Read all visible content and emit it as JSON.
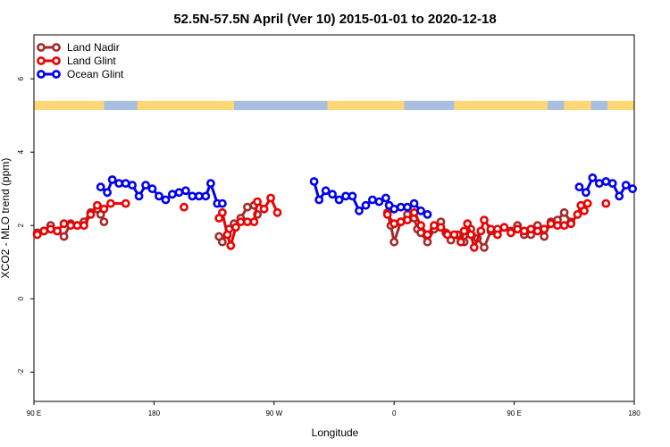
{
  "chart_data": {
    "type": "line",
    "title": "52.5N-57.5N April (Ver 10)   2015-01-01 to 2020-12-18",
    "xlabel": "Longitude",
    "ylabel": "XCO2 - MLO trend (ppm)",
    "ylim": [
      -2.8,
      7.2
    ],
    "xlim": [
      0,
      360
    ],
    "x_ticks": [
      {
        "value": 0,
        "label": "90 E"
      },
      {
        "value": 72,
        "label": "180"
      },
      {
        "value": 144,
        "label": "90 W"
      },
      {
        "value": 216,
        "label": "0"
      },
      {
        "value": 288,
        "label": "90 E"
      },
      {
        "value": 360,
        "label": "180"
      }
    ],
    "y_ticks": [
      {
        "value": -2,
        "label": "-2"
      },
      {
        "value": 0,
        "label": "0"
      },
      {
        "value": 2,
        "label": "2"
      },
      {
        "value": 4,
        "label": "4"
      },
      {
        "value": 6,
        "label": "6"
      }
    ],
    "grid": false,
    "legend_position": "top-left",
    "land_strip": {
      "y_from": 5.15,
      "y_to": 5.4,
      "land_color": "#ffd775",
      "ocean_color": "#a9bfe0"
    },
    "series": [
      {
        "name": "Land Nadir",
        "color": "#a52a2a",
        "segments": [
          [
            [
              2,
              1.8
            ],
            [
              6,
              1.85
            ],
            [
              10,
              2.0
            ],
            [
              14,
              1.85
            ],
            [
              18,
              1.7
            ],
            [
              22,
              2.05
            ],
            [
              26,
              2.0
            ],
            [
              30,
              2.1
            ],
            [
              34,
              2.35
            ],
            [
              38,
              2.45
            ],
            [
              40,
              2.3
            ],
            [
              42,
              2.1
            ]
          ],
          [
            [
              111,
              1.7
            ],
            [
              113,
              1.55
            ],
            [
              117,
              1.9
            ],
            [
              120,
              2.05
            ],
            [
              124,
              2.2
            ],
            [
              128,
              2.5
            ],
            [
              132,
              2.55
            ],
            [
              134,
              2.3
            ]
          ],
          [
            [
              212,
              2.35
            ],
            [
              214,
              2.0
            ],
            [
              216,
              1.55
            ],
            [
              220,
              2.1
            ],
            [
              224,
              2.3
            ],
            [
              228,
              2.2
            ],
            [
              230,
              1.9
            ],
            [
              232,
              1.8
            ],
            [
              236,
              1.55
            ],
            [
              240,
              1.9
            ],
            [
              244,
              2.1
            ],
            [
              247,
              1.8
            ],
            [
              250,
              1.6
            ],
            [
              254,
              1.75
            ],
            [
              258,
              1.55
            ],
            [
              262,
              1.9
            ],
            [
              266,
              1.65
            ],
            [
              270,
              1.4
            ],
            [
              274,
              1.85
            ],
            [
              278,
              1.9
            ],
            [
              282,
              1.95
            ],
            [
              286,
              1.85
            ],
            [
              290,
              2.0
            ],
            [
              294,
              1.75
            ],
            [
              298,
              1.75
            ],
            [
              302,
              2.0
            ],
            [
              306,
              1.7
            ],
            [
              310,
              2.1
            ],
            [
              314,
              2.15
            ],
            [
              318,
              2.35
            ],
            [
              322,
              2.1
            ]
          ]
        ]
      },
      {
        "name": "Land Glint",
        "color": "#ee0000",
        "segments": [
          [
            [
              2,
              1.75
            ],
            [
              6,
              1.85
            ],
            [
              10,
              1.9
            ],
            [
              14,
              1.85
            ],
            [
              18,
              2.05
            ],
            [
              22,
              2.0
            ],
            [
              26,
              2.0
            ],
            [
              30,
              2.0
            ],
            [
              34,
              2.3
            ],
            [
              38,
              2.55
            ],
            [
              42,
              2.45
            ],
            [
              46,
              2.6
            ],
            [
              55,
              2.6
            ]
          ],
          [
            [
              90,
              2.5
            ]
          ],
          [
            [
              111,
              2.2
            ],
            [
              113,
              2.35
            ],
            [
              116,
              1.75
            ],
            [
              118,
              1.45
            ],
            [
              121,
              1.95
            ],
            [
              124,
              2.1
            ],
            [
              128,
              2.1
            ],
            [
              132,
              2.1
            ],
            [
              134,
              2.65
            ],
            [
              138,
              2.45
            ],
            [
              142,
              2.75
            ],
            [
              146,
              2.35
            ]
          ],
          [
            [
              212,
              2.3
            ],
            [
              216,
              2.05
            ],
            [
              220,
              2.1
            ],
            [
              224,
              2.15
            ],
            [
              228,
              2.35
            ],
            [
              232,
              2.0
            ],
            [
              236,
              1.75
            ],
            [
              240,
              2.0
            ],
            [
              244,
              1.95
            ],
            [
              248,
              1.75
            ],
            [
              252,
              1.75
            ],
            [
              256,
              1.55
            ],
            [
              258,
              1.85
            ],
            [
              260,
              2.05
            ],
            [
              262,
              1.75
            ],
            [
              264,
              1.4
            ],
            [
              268,
              1.85
            ],
            [
              270,
              2.15
            ],
            [
              274,
              1.9
            ],
            [
              278,
              1.75
            ],
            [
              282,
              1.95
            ],
            [
              286,
              1.8
            ],
            [
              290,
              1.9
            ],
            [
              294,
              1.85
            ],
            [
              298,
              1.9
            ],
            [
              302,
              1.85
            ],
            [
              306,
              1.9
            ],
            [
              310,
              2.05
            ],
            [
              314,
              2.0
            ],
            [
              318,
              2.0
            ],
            [
              322,
              2.05
            ],
            [
              326,
              2.3
            ],
            [
              328,
              2.55
            ],
            [
              330,
              2.4
            ],
            [
              332,
              2.6
            ]
          ],
          [
            [
              343,
              2.6
            ]
          ]
        ]
      },
      {
        "name": "Ocean Glint",
        "color": "#0000ee",
        "segments": [
          [
            [
              40,
              3.05
            ],
            [
              44,
              2.9
            ],
            [
              47,
              3.25
            ],
            [
              51,
              3.15
            ],
            [
              55,
              3.15
            ],
            [
              59,
              3.1
            ],
            [
              63,
              2.8
            ],
            [
              67,
              3.1
            ],
            [
              71,
              3.0
            ],
            [
              75,
              2.8
            ],
            [
              79,
              2.7
            ],
            [
              83,
              2.85
            ],
            [
              87,
              2.9
            ],
            [
              91,
              2.95
            ],
            [
              95,
              2.8
            ],
            [
              99,
              2.8
            ],
            [
              103,
              2.8
            ],
            [
              106,
              3.15
            ],
            [
              110,
              2.6
            ],
            [
              113,
              2.6
            ]
          ],
          [
            [
              168,
              3.2
            ],
            [
              171,
              2.7
            ],
            [
              175,
              2.95
            ],
            [
              179,
              2.85
            ],
            [
              183,
              2.7
            ],
            [
              187,
              2.8
            ],
            [
              191,
              2.8
            ],
            [
              195,
              2.4
            ],
            [
              199,
              2.55
            ],
            [
              203,
              2.7
            ],
            [
              207,
              2.65
            ],
            [
              211,
              2.75
            ],
            [
              213,
              2.55
            ],
            [
              216,
              2.45
            ],
            [
              220,
              2.5
            ],
            [
              224,
              2.5
            ],
            [
              228,
              2.6
            ],
            [
              232,
              2.4
            ],
            [
              236,
              2.3
            ]
          ],
          [
            [
              327,
              3.05
            ],
            [
              331,
              2.9
            ],
            [
              335,
              3.3
            ],
            [
              339,
              3.15
            ],
            [
              343,
              3.2
            ],
            [
              347,
              3.15
            ],
            [
              351,
              2.8
            ],
            [
              355,
              3.1
            ],
            [
              359,
              3.0
            ]
          ]
        ]
      }
    ]
  }
}
